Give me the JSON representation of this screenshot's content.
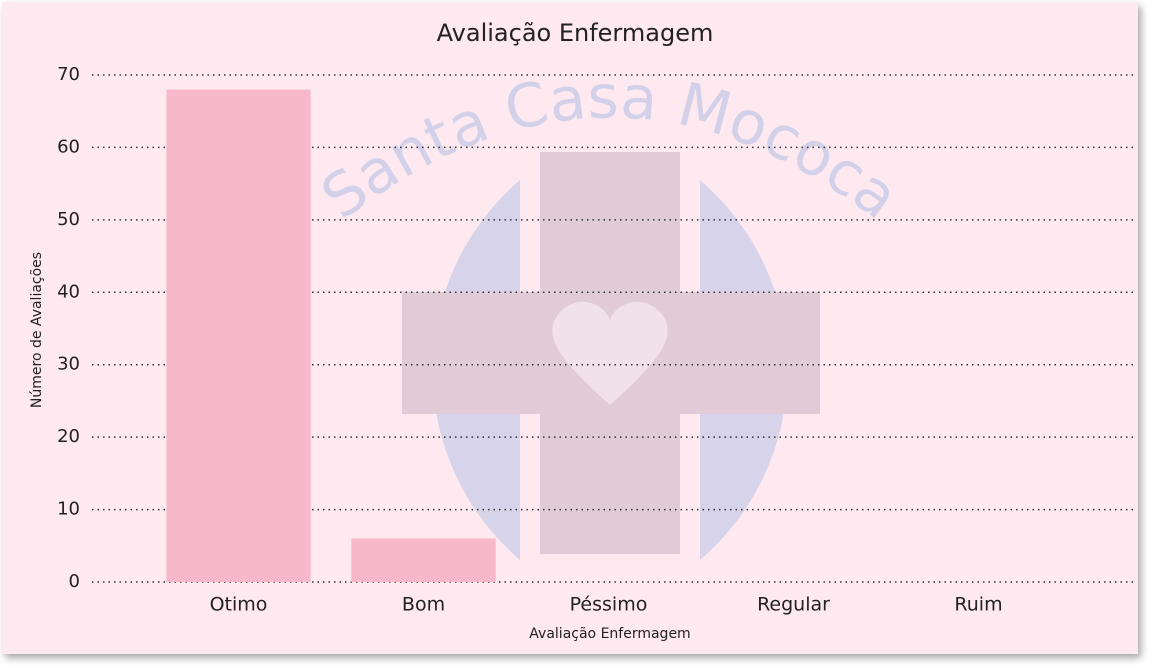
{
  "chart_data": {
    "type": "bar",
    "title": "Avaliação Enfermagem",
    "watermark": "Santa Casa Mococa",
    "x_label": "Avaliação Enfermagem",
    "y_label": "Número de Avaliações",
    "categories": [
      "Otimo",
      "Bom",
      "Péssimo",
      "Regular",
      "Ruim"
    ],
    "values": [
      68,
      6,
      0,
      0,
      0
    ],
    "color": "#f7b8cc",
    "ylim": [
      0,
      70
    ],
    "yticks": [
      0,
      10,
      20,
      30,
      40,
      50,
      60,
      70
    ],
    "grid": true
  }
}
